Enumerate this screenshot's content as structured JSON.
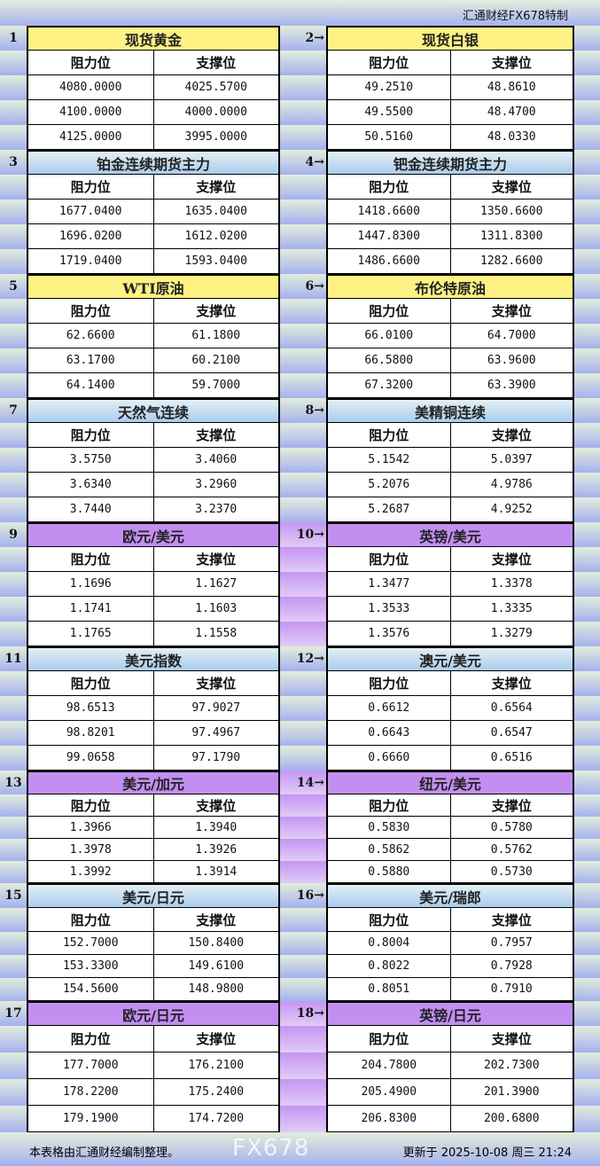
{
  "header": {
    "brand": "汇通财经FX678特制"
  },
  "col_headers": {
    "resistance": "阻力位",
    "support": "支撑位"
  },
  "colors": {
    "yellow": "#fdf283",
    "blue": "#a9cdee",
    "purple": "#c28ff1"
  },
  "block_rows": [
    {
      "left": {
        "num": "1",
        "name": "现货黄金",
        "theme": "yellow",
        "rows": [
          [
            "4080.0000",
            "4025.5700"
          ],
          [
            "4100.0000",
            "4000.0000"
          ],
          [
            "4125.0000",
            "3995.0000"
          ]
        ]
      },
      "right": {
        "num": "2→",
        "name": "现货白银",
        "theme": "yellow",
        "rows": [
          [
            "49.2510",
            "48.8610"
          ],
          [
            "49.5500",
            "48.4700"
          ],
          [
            "50.5160",
            "48.0330"
          ]
        ]
      }
    },
    {
      "left": {
        "num": "3",
        "name": "铂金连续期货主力",
        "theme": "blue",
        "rows": [
          [
            "1677.0400",
            "1635.0400"
          ],
          [
            "1696.0200",
            "1612.0200"
          ],
          [
            "1719.0400",
            "1593.0400"
          ]
        ]
      },
      "right": {
        "num": "4→",
        "name": "钯金连续期货主力",
        "theme": "blue",
        "rows": [
          [
            "1418.6600",
            "1350.6600"
          ],
          [
            "1447.8300",
            "1311.8300"
          ],
          [
            "1486.6600",
            "1282.6600"
          ]
        ]
      }
    },
    {
      "left": {
        "num": "5",
        "name": "WTI原油",
        "theme": "yellow",
        "rows": [
          [
            "62.6600",
            "61.1800"
          ],
          [
            "63.1700",
            "60.2100"
          ],
          [
            "64.1400",
            "59.7000"
          ]
        ]
      },
      "right": {
        "num": "6→",
        "name": "布伦特原油",
        "theme": "yellow",
        "rows": [
          [
            "66.0100",
            "64.7000"
          ],
          [
            "66.5800",
            "63.9600"
          ],
          [
            "67.3200",
            "63.3900"
          ]
        ]
      }
    },
    {
      "left": {
        "num": "7",
        "name": "天然气连续",
        "theme": "blue",
        "rows": [
          [
            "3.5750",
            "3.4060"
          ],
          [
            "3.6340",
            "3.2960"
          ],
          [
            "3.7440",
            "3.2370"
          ]
        ]
      },
      "right": {
        "num": "8→",
        "name": "美精铜连续",
        "theme": "blue",
        "rows": [
          [
            "5.1542",
            "5.0397"
          ],
          [
            "5.2076",
            "4.9786"
          ],
          [
            "5.2687",
            "4.9252"
          ]
        ]
      }
    },
    {
      "left": {
        "num": "9",
        "name": "欧元/美元",
        "theme": "purple",
        "rows": [
          [
            "1.1696",
            "1.1627"
          ],
          [
            "1.1741",
            "1.1603"
          ],
          [
            "1.1765",
            "1.1558"
          ]
        ]
      },
      "right": {
        "num": "10→",
        "name": "英镑/美元",
        "theme": "purple",
        "rows": [
          [
            "1.3477",
            "1.3378"
          ],
          [
            "1.3533",
            "1.3335"
          ],
          [
            "1.3576",
            "1.3279"
          ]
        ]
      }
    },
    {
      "left": {
        "num": "11",
        "name": "美元指数",
        "theme": "blue",
        "rows": [
          [
            "98.6513",
            "97.9027"
          ],
          [
            "98.8201",
            "97.4967"
          ],
          [
            "99.0658",
            "97.1790"
          ]
        ]
      },
      "right": {
        "num": "12→",
        "name": "澳元/美元",
        "theme": "blue",
        "rows": [
          [
            "0.6612",
            "0.6564"
          ],
          [
            "0.6643",
            "0.6547"
          ],
          [
            "0.6660",
            "0.6516"
          ]
        ]
      }
    },
    {
      "left": {
        "num": "13",
        "name": "美元/加元",
        "theme": "purple",
        "rows": [
          [
            "1.3966",
            "1.3940"
          ],
          [
            "1.3978",
            "1.3926"
          ],
          [
            "1.3992",
            "1.3914"
          ]
        ]
      },
      "right": {
        "num": "14→",
        "name": "纽元/美元",
        "theme": "purple",
        "rows": [
          [
            "0.5830",
            "0.5780"
          ],
          [
            "0.5862",
            "0.5762"
          ],
          [
            "0.5880",
            "0.5730"
          ]
        ]
      }
    },
    {
      "left": {
        "num": "15",
        "name": "美元/日元",
        "theme": "blue",
        "rows": [
          [
            "152.7000",
            "150.8400"
          ],
          [
            "153.3300",
            "149.6100"
          ],
          [
            "154.5600",
            "148.9800"
          ]
        ]
      },
      "right": {
        "num": "16→",
        "name": "美元/瑞郎",
        "theme": "blue",
        "rows": [
          [
            "0.8004",
            "0.7957"
          ],
          [
            "0.8022",
            "0.7928"
          ],
          [
            "0.8051",
            "0.7910"
          ]
        ]
      }
    },
    {
      "left": {
        "num": "17",
        "name": "欧元/日元",
        "theme": "purple",
        "rows": [
          [
            "177.7000",
            "176.2100"
          ],
          [
            "178.2200",
            "175.2400"
          ],
          [
            "179.1900",
            "174.7200"
          ]
        ]
      },
      "right": {
        "num": "18→",
        "name": "英镑/日元",
        "theme": "purple",
        "rows": [
          [
            "204.7800",
            "202.7300"
          ],
          [
            "205.4900",
            "201.3900"
          ],
          [
            "206.8300",
            "200.6800"
          ]
        ]
      }
    }
  ],
  "footer": {
    "note": "本表格由汇通财经编制整理。",
    "updated": "更新于 2025-10-08 周三 21:24",
    "watermark": "FX678"
  }
}
